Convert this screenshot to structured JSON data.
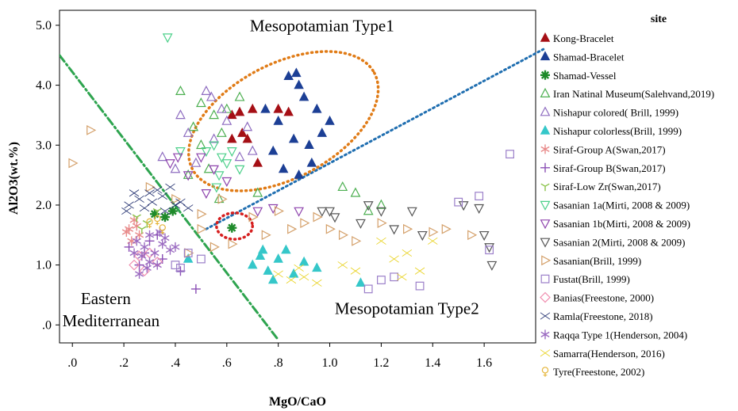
{
  "chart_data": {
    "type": "scatter",
    "xlabel": "MgO/CaO",
    "ylabel": "Al2O3(wt.%)",
    "xlim": [
      -0.05,
      1.8
    ],
    "ylim": [
      -0.3,
      5.25
    ],
    "xticks": [
      {
        "v": 0.0,
        "label": ".0"
      },
      {
        "v": 0.2,
        "label": ".2"
      },
      {
        "v": 0.4,
        "label": ".4"
      },
      {
        "v": 0.6,
        "label": ".6"
      },
      {
        "v": 0.8,
        "label": ".8"
      },
      {
        "v": 1.0,
        "label": "1.0"
      },
      {
        "v": 1.2,
        "label": "1.2"
      },
      {
        "v": 1.4,
        "label": "1.4"
      },
      {
        "v": 1.6,
        "label": "1.6"
      }
    ],
    "yticks": [
      {
        "v": 0.0,
        "label": ".0"
      },
      {
        "v": 1.0,
        "label": "1.0"
      },
      {
        "v": 2.0,
        "label": "2.0"
      },
      {
        "v": 3.0,
        "label": "3.0"
      },
      {
        "v": 4.0,
        "label": "4.0"
      },
      {
        "v": 5.0,
        "label": "5.0"
      }
    ],
    "region_labels": [
      {
        "text": "Mesopotamian Type1",
        "x": 0.97,
        "y": 4.9
      },
      {
        "text": "Eastern",
        "x": 0.13,
        "y": 0.35
      },
      {
        "text": "Mediterranean",
        "x": 0.15,
        "y": -0.02
      },
      {
        "text": "Mesopotamian Type2",
        "x": 1.3,
        "y": 0.18
      }
    ],
    "boundary_lines": [
      {
        "style": "dash-dot",
        "color": "#2ea44f",
        "from": [
          -0.05,
          4.5
        ],
        "to": [
          0.8,
          -0.25
        ]
      },
      {
        "style": "dotted",
        "color": "#1f6eb0",
        "from": [
          0.52,
          1.6
        ],
        "to": [
          1.83,
          4.6
        ]
      }
    ],
    "ellipses": [
      {
        "cx": 0.82,
        "cy": 3.4,
        "rx": 0.4,
        "ry": 0.95,
        "angle_deg": -28,
        "color": "#e07b16"
      },
      {
        "cx": 0.63,
        "cy": 1.65,
        "rx": 0.07,
        "ry": 0.22,
        "angle_deg": 0,
        "color": "#d61f1f"
      }
    ],
    "legend_title": "site",
    "legend_position": "right",
    "series": [
      {
        "name": "Kong-Bracelet",
        "marker": "tri-up-filled",
        "color": "#a50f15",
        "points": [
          [
            0.62,
            3.5
          ],
          [
            0.65,
            3.55
          ],
          [
            0.7,
            3.6
          ],
          [
            0.8,
            3.6
          ],
          [
            0.84,
            3.55
          ],
          [
            0.62,
            3.1
          ],
          [
            0.68,
            3.1
          ],
          [
            0.72,
            2.7
          ],
          [
            0.66,
            3.2
          ]
        ]
      },
      {
        "name": "Shamad-Bracelet",
        "marker": "tri-up-filled",
        "color": "#1c3f95",
        "points": [
          [
            0.84,
            4.15
          ],
          [
            0.87,
            4.2
          ],
          [
            0.88,
            4.0
          ],
          [
            0.9,
            3.8
          ],
          [
            0.95,
            3.6
          ],
          [
            1.0,
            3.4
          ],
          [
            0.86,
            3.1
          ],
          [
            0.92,
            3.0
          ],
          [
            0.78,
            2.9
          ],
          [
            0.82,
            2.6
          ],
          [
            0.88,
            2.5
          ],
          [
            0.8,
            3.4
          ],
          [
            0.97,
            3.2
          ],
          [
            0.75,
            3.6
          ],
          [
            0.93,
            2.7
          ]
        ]
      },
      {
        "name": "Shamad-Vessel",
        "marker": "star8",
        "color": "#1e8a2a",
        "points": [
          [
            0.32,
            1.85
          ],
          [
            0.36,
            1.8
          ],
          [
            0.39,
            1.9
          ],
          [
            0.62,
            1.62
          ]
        ]
      },
      {
        "name": "Iran Natinal Museum(Salehvand,2019)",
        "marker": "tri-up-open",
        "color": "#4caf50",
        "points": [
          [
            0.42,
            3.9
          ],
          [
            0.5,
            3.7
          ],
          [
            0.55,
            3.5
          ],
          [
            0.58,
            3.2
          ],
          [
            0.5,
            3.0
          ],
          [
            0.6,
            3.6
          ],
          [
            0.65,
            3.8
          ],
          [
            0.47,
            3.3
          ],
          [
            1.05,
            2.3
          ],
          [
            1.1,
            2.2
          ],
          [
            1.2,
            2.0
          ],
          [
            1.15,
            1.9
          ],
          [
            0.53,
            2.6
          ],
          [
            0.57,
            2.1
          ],
          [
            0.72,
            2.2
          ],
          [
            0.45,
            2.5
          ]
        ]
      },
      {
        "name": "Nishapur colored( Brill, 1999)",
        "marker": "tri-up-open",
        "color": "#8e6cc0",
        "points": [
          [
            0.35,
            2.8
          ],
          [
            0.4,
            2.6
          ],
          [
            0.45,
            3.2
          ],
          [
            0.55,
            3.1
          ],
          [
            0.6,
            3.4
          ],
          [
            0.52,
            3.9
          ],
          [
            0.58,
            3.6
          ],
          [
            0.65,
            2.8
          ],
          [
            0.48,
            2.7
          ],
          [
            0.42,
            3.5
          ],
          [
            0.68,
            3.3
          ],
          [
            0.54,
            3.8
          ],
          [
            0.7,
            2.9
          ]
        ]
      },
      {
        "name": "Nishapur colorless(Brill, 1999)",
        "marker": "tri-up-filled",
        "color": "#35c7c9",
        "points": [
          [
            0.45,
            1.1
          ],
          [
            0.7,
            1.0
          ],
          [
            0.73,
            1.15
          ],
          [
            0.76,
            0.9
          ],
          [
            0.8,
            1.1
          ],
          [
            0.83,
            1.25
          ],
          [
            0.86,
            0.85
          ],
          [
            0.95,
            0.95
          ],
          [
            1.12,
            0.7
          ],
          [
            0.78,
            0.75
          ],
          [
            0.9,
            1.05
          ],
          [
            0.74,
            1.25
          ]
        ]
      },
      {
        "name": "Siraf-Group A(Swan,2017)",
        "marker": "asterisk",
        "color": "#e88a8a",
        "points": [
          [
            0.22,
            1.6
          ],
          [
            0.24,
            1.75
          ],
          [
            0.26,
            1.5
          ],
          [
            0.21,
            1.55
          ],
          [
            0.23,
            1.4
          ],
          [
            0.25,
            1.65
          ]
        ]
      },
      {
        "name": "Siraf-Group B(Swan,2017)",
        "marker": "plus",
        "color": "#8a4fb5",
        "points": [
          [
            0.22,
            1.3
          ],
          [
            0.28,
            1.2
          ],
          [
            0.3,
            1.4
          ],
          [
            0.35,
            1.1
          ],
          [
            0.42,
            0.9
          ],
          [
            0.48,
            0.6
          ],
          [
            0.26,
            1.0
          ],
          [
            0.33,
            1.5
          ]
        ]
      },
      {
        "name": "Siraf-Low Zr(Swan,2017)",
        "marker": "y",
        "color": "#8bc34a",
        "points": [
          [
            0.25,
            1.8
          ],
          [
            0.29,
            1.7
          ],
          [
            0.33,
            1.9
          ],
          [
            0.27,
            1.6
          ]
        ]
      },
      {
        "name": "Sasanian 1a(Mirti, 2008 & 2009)",
        "marker": "tri-down-open",
        "color": "#4cd08a",
        "points": [
          [
            0.37,
            4.8
          ],
          [
            0.55,
            3.0
          ],
          [
            0.58,
            2.8
          ],
          [
            0.6,
            2.7
          ],
          [
            0.62,
            2.9
          ],
          [
            0.52,
            2.9
          ],
          [
            0.57,
            2.5
          ],
          [
            0.65,
            2.6
          ],
          [
            0.42,
            2.9
          ],
          [
            0.56,
            2.3
          ]
        ]
      },
      {
        "name": "Sasanian 1b(Mirti, 2008 & 2009)",
        "marker": "tri-down-open",
        "color": "#8e44ad",
        "points": [
          [
            0.38,
            2.7
          ],
          [
            0.45,
            2.5
          ],
          [
            0.5,
            2.8
          ],
          [
            0.55,
            2.6
          ],
          [
            0.72,
            1.9
          ],
          [
            0.78,
            1.95
          ],
          [
            0.88,
            1.9
          ],
          [
            0.52,
            2.2
          ],
          [
            0.41,
            2.8
          ],
          [
            0.6,
            2.4
          ]
        ]
      },
      {
        "name": "Sasanian 2(Mirti, 2008 & 2009)",
        "marker": "tri-down-open",
        "color": "#555555",
        "points": [
          [
            0.97,
            1.9
          ],
          [
            1.0,
            1.9
          ],
          [
            1.15,
            2.0
          ],
          [
            1.2,
            1.9
          ],
          [
            1.25,
            1.6
          ],
          [
            1.32,
            1.9
          ],
          [
            1.36,
            1.5
          ],
          [
            1.52,
            2.0
          ],
          [
            1.58,
            1.95
          ],
          [
            1.6,
            1.5
          ],
          [
            1.62,
            1.3
          ],
          [
            1.63,
            1.0
          ],
          [
            1.02,
            1.8
          ],
          [
            1.12,
            1.7
          ]
        ]
      },
      {
        "name": "Sasanian(Brill, 1999)",
        "marker": "tri-right-open",
        "color": "#d4a06a",
        "points": [
          [
            0.0,
            2.7
          ],
          [
            0.07,
            3.25
          ],
          [
            0.4,
            2.1
          ],
          [
            0.5,
            1.85
          ],
          [
            0.55,
            1.3
          ],
          [
            0.62,
            1.35
          ],
          [
            0.75,
            1.5
          ],
          [
            0.8,
            1.9
          ],
          [
            0.9,
            1.7
          ],
          [
            1.0,
            1.6
          ],
          [
            1.05,
            1.5
          ],
          [
            1.1,
            1.4
          ],
          [
            1.2,
            1.7
          ],
          [
            1.3,
            1.6
          ],
          [
            1.4,
            1.55
          ],
          [
            1.45,
            1.6
          ],
          [
            1.55,
            1.5
          ],
          [
            0.7,
            1.8
          ],
          [
            0.95,
            1.8
          ],
          [
            0.85,
            1.6
          ],
          [
            0.45,
            1.2
          ],
          [
            0.5,
            1.6
          ],
          [
            0.58,
            2.1
          ],
          [
            0.3,
            2.3
          ]
        ]
      },
      {
        "name": "Fustat(Brill, 1999)",
        "marker": "square-open",
        "color": "#9b7fc9",
        "points": [
          [
            0.4,
            1.0
          ],
          [
            0.45,
            1.2
          ],
          [
            0.5,
            1.1
          ],
          [
            1.15,
            0.6
          ],
          [
            1.2,
            0.75
          ],
          [
            1.35,
            0.65
          ],
          [
            1.5,
            2.05
          ],
          [
            1.58,
            2.15
          ],
          [
            1.7,
            2.85
          ],
          [
            1.62,
            1.25
          ],
          [
            0.42,
            0.95
          ],
          [
            1.25,
            0.8
          ]
        ]
      },
      {
        "name": "Banias(Freestone, 2000)",
        "marker": "diamond-open",
        "color": "#f08fb0",
        "points": [
          [
            0.24,
            1.0
          ],
          [
            0.28,
            0.9
          ],
          [
            0.3,
            1.2
          ],
          [
            0.26,
            1.15
          ],
          [
            0.33,
            1.05
          ]
        ]
      },
      {
        "name": "Ramla(Freestone, 2018)",
        "marker": "bowtie",
        "color": "#1f2d6d",
        "points": [
          [
            0.22,
            2.0
          ],
          [
            0.26,
            2.1
          ],
          [
            0.3,
            2.2
          ],
          [
            0.35,
            2.15
          ],
          [
            0.4,
            2.0
          ],
          [
            0.42,
            2.05
          ],
          [
            0.28,
            1.95
          ],
          [
            0.33,
            2.25
          ],
          [
            0.38,
            2.3
          ],
          [
            0.24,
            2.2
          ],
          [
            0.45,
            1.95
          ],
          [
            0.31,
            2.05
          ],
          [
            0.36,
            1.9
          ],
          [
            0.21,
            1.9
          ]
        ]
      },
      {
        "name": "Raqqa Type 1(Henderson, 2004)",
        "marker": "asterisk",
        "color": "#9b6bc1",
        "points": [
          [
            0.25,
            1.4
          ],
          [
            0.28,
            1.3
          ],
          [
            0.3,
            1.5
          ],
          [
            0.32,
            1.2
          ],
          [
            0.35,
            1.35
          ],
          [
            0.27,
            1.15
          ],
          [
            0.33,
            1.0
          ],
          [
            0.38,
            1.25
          ],
          [
            0.24,
            1.2
          ],
          [
            0.3,
            1.05
          ],
          [
            0.36,
            1.45
          ],
          [
            0.29,
            0.95
          ],
          [
            0.26,
            0.85
          ],
          [
            0.4,
            1.3
          ],
          [
            0.34,
            1.55
          ]
        ]
      },
      {
        "name": "Samarra(Henderson, 2016)",
        "marker": "bowtie",
        "color": "#e8d21f",
        "points": [
          [
            0.8,
            0.85
          ],
          [
            0.85,
            0.75
          ],
          [
            0.9,
            0.8
          ],
          [
            0.95,
            0.7
          ],
          [
            1.05,
            1.0
          ],
          [
            1.1,
            0.9
          ],
          [
            1.2,
            1.4
          ],
          [
            1.25,
            1.1
          ],
          [
            1.3,
            1.2
          ],
          [
            1.35,
            0.9
          ],
          [
            1.4,
            1.4
          ],
          [
            0.88,
            0.95
          ],
          [
            1.28,
            0.8
          ]
        ]
      },
      {
        "name": "Tyre(Freestone, 2002)",
        "marker": "female",
        "color": "#e5b53a",
        "points": [
          [
            0.3,
            1.7
          ],
          [
            0.33,
            1.75
          ],
          [
            0.35,
            1.6
          ]
        ]
      }
    ]
  }
}
